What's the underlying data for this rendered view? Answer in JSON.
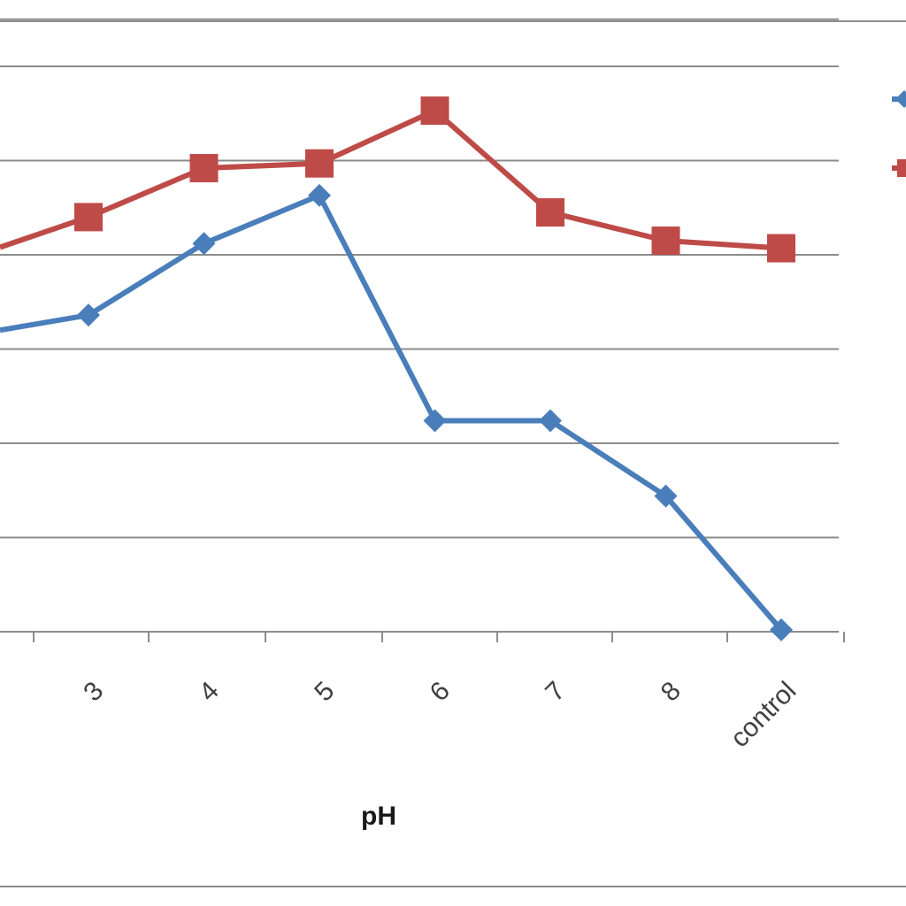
{
  "chart_data": {
    "type": "line",
    "xlabel": "pH",
    "ylabel": "",
    "categories": [
      "3",
      "4",
      "5",
      "6",
      "7",
      "8",
      "control"
    ],
    "grid": true,
    "legend_position": "right (partially cropped, labels not visible)",
    "series": [
      {
        "color": "#4A7EBB",
        "marker": "diamond",
        "values": [
          3.36,
          4.12,
          4.63,
          2.24,
          2.24,
          1.44,
          0.02
        ]
      },
      {
        "color": "#BE4B48",
        "marker": "square",
        "values": [
          4.4,
          4.92,
          4.97,
          5.53,
          4.45,
          4.15,
          4.07
        ]
      }
    ],
    "partial_points": {
      "series_0_left_edge_value": 3.2,
      "series_1_left_edge_value": 4.08
    },
    "ylim": [
      0,
      6.6
    ],
    "y_gridlines": [
      0,
      1,
      2,
      3,
      4,
      5,
      6,
      6.5
    ]
  },
  "colors": {
    "gridline": "#8c8c8c",
    "border": "#8c8c8c",
    "tick_text": "#404040"
  }
}
